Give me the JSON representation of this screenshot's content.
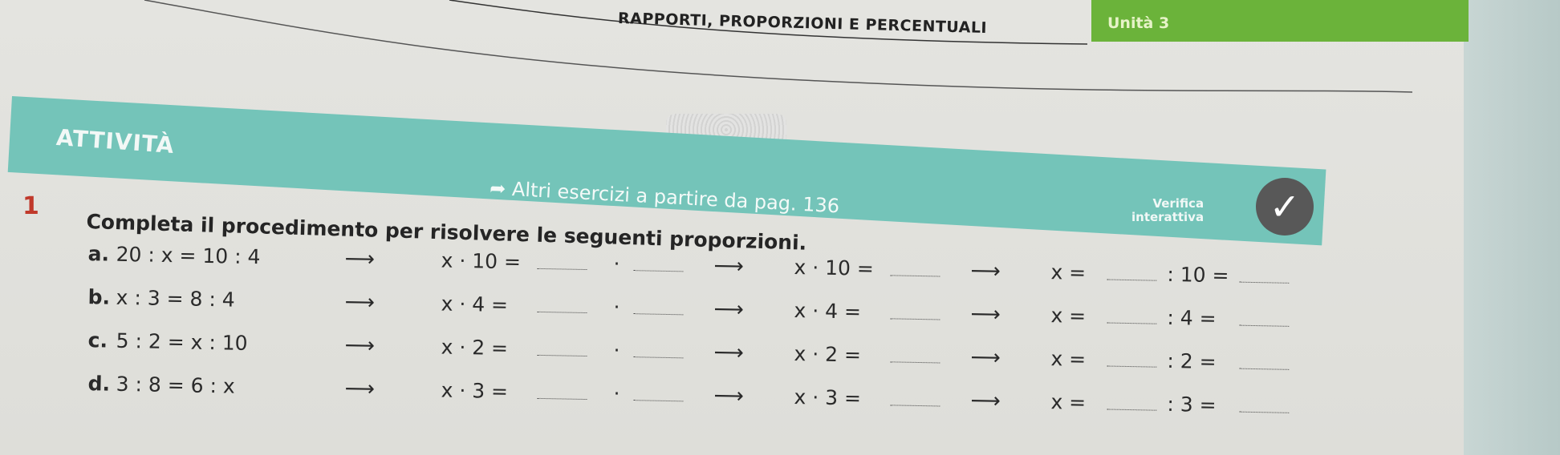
{
  "header": {
    "title": "RAPPORTI, PROPORZIONI E PERCENTUALI",
    "unit": "Unità 3"
  },
  "band": {
    "section": "ATTIVITÀ",
    "more_exercises": "Altri esercizi a partire da pag. 136",
    "interactive_check": [
      "Verifica",
      "interattiva"
    ],
    "check_icon": "✓"
  },
  "exercise": {
    "number": "1",
    "instruction": "Completa il procedimento per risolvere le seguenti proporzioni.",
    "rows": [
      {
        "label": "a.",
        "proportion": "20 : x = 10 : 4",
        "step1": "x · 10 =",
        "dot": "·",
        "step2": "x · 10 =",
        "step3": "x =",
        "step4": ": 10 ="
      },
      {
        "label": "b.",
        "proportion": "x : 3 = 8 : 4",
        "step1": "x · 4 =",
        "dot": "·",
        "step2": "x · 4 =",
        "step3": "x =",
        "step4": ": 4 ="
      },
      {
        "label": "c.",
        "proportion": "5 : 2 = x : 10",
        "step1": "x · 2 =",
        "dot": "·",
        "step2": "x · 2 =",
        "step3": "x =",
        "step4": ": 2 ="
      },
      {
        "label": "d.",
        "proportion": "3 : 8 = 6 : x",
        "step1": "x · 3 =",
        "dot": "·",
        "step2": "x · 3 =",
        "step3": "x =",
        "step4": ": 3 ="
      }
    ]
  },
  "colors": {
    "unit_green": "#6bb33a",
    "band_teal": "#74c4b9",
    "number_red": "#c0392b"
  }
}
